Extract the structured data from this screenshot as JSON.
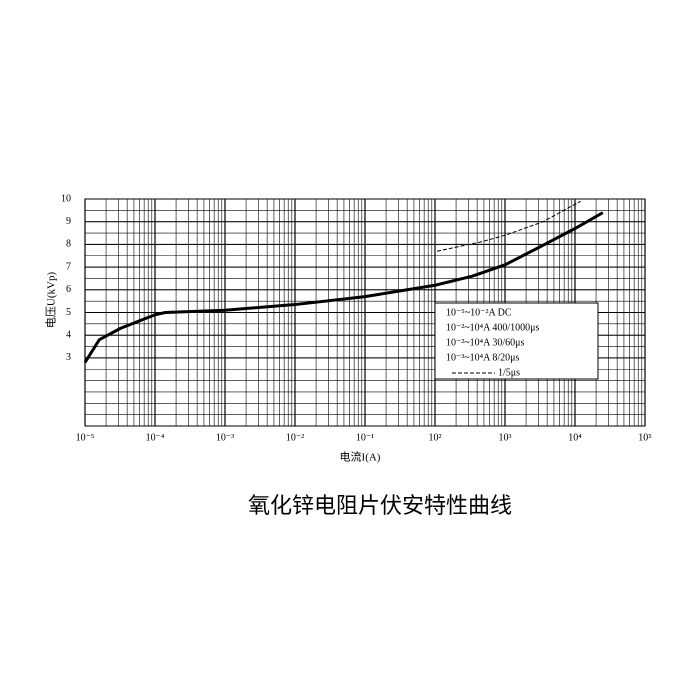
{
  "chart_data": {
    "type": "line",
    "title": "氧化锌电阻片伏安特性曲线",
    "x_label": "电流I(A)",
    "y_label": "电压U(kVp)",
    "x_log": true,
    "grid": true,
    "xlim": [
      0.001,
      100000
    ],
    "xticks": [
      {
        "value": 0.001,
        "label": "10⁻⁵"
      },
      {
        "value": 0.01,
        "label": "10⁻⁴"
      },
      {
        "value": 0.1,
        "label": "10⁻³"
      },
      {
        "value": 1,
        "label": "10⁻²"
      },
      {
        "value": 10,
        "label": "10⁻¹"
      },
      {
        "value": 100,
        "label": "10²"
      },
      {
        "value": 1000,
        "label": "10³"
      },
      {
        "value": 10000,
        "label": "10⁴"
      },
      {
        "value": 100000,
        "label": "10⁵"
      }
    ],
    "ylim": [
      0,
      10
    ],
    "yticks": [
      3,
      4,
      5,
      6,
      7,
      8,
      9,
      10
    ],
    "legend_entries": [
      "10⁻⁵~10⁻²A  DC",
      "10⁻²~10⁴A  400/1000μs",
      "10⁻²~10⁴A  30/60μs",
      "10⁻³~10⁴A  8/20μs"
    ],
    "series": [
      {
        "color": "#000000",
        "dash": false,
        "x": [
          0.001,
          0.0016,
          0.0032,
          0.01,
          0.014,
          0.1,
          1,
          10,
          100,
          340,
          1000,
          3200,
          10000,
          25000
        ],
        "values": [
          2.8,
          3.8,
          4.3,
          4.9,
          5.0,
          5.1,
          5.35,
          5.7,
          6.2,
          6.6,
          7.1,
          7.9,
          8.7,
          9.4
        ]
      },
      {
        "name": "1/5μs",
        "color": "#000000",
        "dash": true,
        "x": [
          107,
          440,
          1000,
          3500,
          12000
        ],
        "values": [
          7.7,
          8.1,
          8.4,
          9.0,
          9.9
        ]
      }
    ]
  }
}
